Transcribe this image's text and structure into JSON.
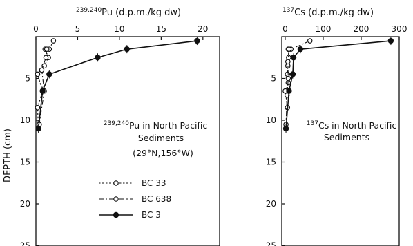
{
  "chart_data": [
    {
      "type": "line",
      "title": "239,240Pu (d.p.m./kg dw)",
      "title_sup": "239,240",
      "title_main": "Pu (d.p.m./kg dw)",
      "ylabel": "DEPTH (cm)",
      "x_axis_position": "top",
      "y_axis_inverted": true,
      "xlim": [
        0,
        22
      ],
      "ylim": [
        0,
        25
      ],
      "xticks": [
        0,
        5,
        10,
        15,
        20
      ],
      "yticks": [
        5,
        10,
        15,
        20,
        25
      ],
      "xtick_labels": [
        "0",
        "5",
        "10",
        "15",
        "20"
      ],
      "ytick_labels": [
        "5",
        "10",
        "15",
        "20",
        "25"
      ],
      "annotation": {
        "sup": "239,240",
        "line1": "Pu in North Pacific",
        "line2": "Sediments",
        "line3": "(29°N,156°W)"
      },
      "legend": {
        "placement": "bottom-left",
        "entries": [
          {
            "label": "BC 33",
            "marker": "open-circle",
            "line": "dotted"
          },
          {
            "label": "BC 638",
            "marker": "open-circle",
            "line": "dash-dot"
          },
          {
            "label": "BC 3",
            "marker": "filled-circle",
            "line": "solid"
          }
        ]
      },
      "series": [
        {
          "name": "BC 33",
          "marker": "open-circle",
          "line": "dotted",
          "points": [
            [
              2.1,
              0.5
            ],
            [
              1.6,
              1.5
            ],
            [
              1.1,
              1.5
            ],
            [
              1.5,
              2.5
            ],
            [
              1.0,
              3.5
            ],
            [
              0.2,
              4.5
            ],
            [
              0.8,
              6.5
            ],
            [
              0.2,
              8.5
            ],
            [
              0.3,
              11.0
            ]
          ]
        },
        {
          "name": "BC 638",
          "marker": "open-circle",
          "line": "dash-dot",
          "points": [
            [
              1.3,
              1.5
            ],
            [
              1.2,
              2.5
            ],
            [
              0.7,
              4.0
            ],
            [
              1.0,
              6.5
            ],
            [
              0.4,
              10.5
            ]
          ]
        },
        {
          "name": "BC 3",
          "marker": "filled-circle",
          "line": "solid",
          "points": [
            [
              19.3,
              0.5
            ],
            [
              10.9,
              1.5
            ],
            [
              7.4,
              2.5
            ],
            [
              1.6,
              4.5
            ],
            [
              0.8,
              6.5
            ],
            [
              0.3,
              11.0
            ]
          ]
        }
      ]
    },
    {
      "type": "line",
      "title": "137Cs (d.p.m./kg dw)",
      "title_sup": "137",
      "title_main": "Cs (d.p.m./kg dw)",
      "ylabel": "",
      "x_axis_position": "top",
      "y_axis_inverted": true,
      "xlim": [
        0,
        300
      ],
      "ylim": [
        0,
        25
      ],
      "xticks": [
        0,
        100,
        200,
        300
      ],
      "yticks": [
        5,
        10,
        15,
        20,
        25
      ],
      "xtick_labels": [
        "0",
        "100",
        "200",
        "300"
      ],
      "ytick_labels": [
        "5",
        "10",
        "15",
        "20",
        "25"
      ],
      "annotation": {
        "sup": "137",
        "line1": "Cs in North Pacific",
        "line2": "Sediments"
      },
      "series": [
        {
          "name": "BC 33",
          "marker": "open-circle",
          "line": "dotted",
          "points": [
            [
              65,
              0.5
            ],
            [
              15,
              1.5
            ],
            [
              8,
              1.5
            ],
            [
              9,
              2.5
            ],
            [
              7,
              3.5
            ],
            [
              6,
              4.5
            ],
            [
              8,
              5.5
            ],
            [
              0,
              6.5
            ],
            [
              6,
              8.5
            ],
            [
              2,
              11.0
            ]
          ]
        },
        {
          "name": "BC 638",
          "marker": "open-circle",
          "line": "dash-dot",
          "points": [
            [
              10,
              1.5
            ],
            [
              7,
              3.0
            ],
            [
              8,
              5.0
            ],
            [
              5,
              7.0
            ],
            [
              2,
              10.5
            ]
          ]
        },
        {
          "name": "BC 3",
          "marker": "filled-circle",
          "line": "solid",
          "points": [
            [
              278,
              0.5
            ],
            [
              40,
              1.5
            ],
            [
              22,
              2.5
            ],
            [
              20,
              4.5
            ],
            [
              10,
              6.5
            ],
            [
              2,
              11.0
            ]
          ]
        }
      ]
    }
  ]
}
